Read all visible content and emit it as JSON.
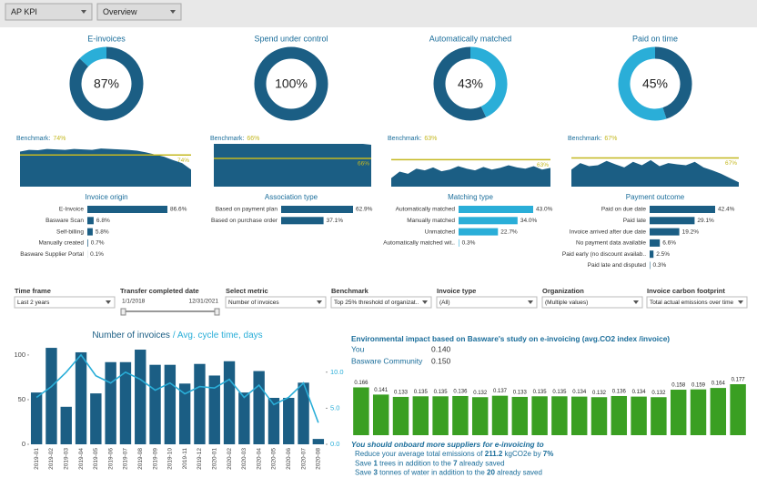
{
  "header": {
    "dropdowns": [
      "AP KPI",
      "Overview"
    ]
  },
  "chart_data": [
    {
      "type": "donut",
      "title": "E-invoices",
      "values": [
        87
      ],
      "value_labels": [
        "87%"
      ],
      "color": "#1b5e84",
      "rest_color": "#2aaed8"
    },
    {
      "type": "donut",
      "title": "Spend under control",
      "values": [
        100
      ],
      "value_labels": [
        "100%"
      ],
      "color": "#1b5e84",
      "rest_color": "#2aaed8"
    },
    {
      "type": "donut",
      "title": "Automatically matched",
      "values": [
        43
      ],
      "value_labels": [
        "43%"
      ],
      "color": "#2aaed8",
      "rest_color": "#1b5e84"
    },
    {
      "type": "donut",
      "title": "Paid on time",
      "values": [
        45
      ],
      "value_labels": [
        "45%"
      ],
      "color": "#1b5e84",
      "rest_color": "#2aaed8"
    },
    {
      "type": "area",
      "benchmark_label": "Benchmark:",
      "benchmark": {
        "value": 74,
        "label": "74%"
      },
      "ylim": [
        0,
        100
      ],
      "color": "#1b5e84",
      "benchmark_color": "#c4b820",
      "values": [
        82,
        86,
        85,
        88,
        87,
        86,
        88,
        87,
        86,
        89,
        88,
        87,
        86,
        84,
        80,
        75,
        70,
        62,
        55,
        40
      ]
    },
    {
      "type": "area",
      "benchmark_label": "Benchmark:",
      "benchmark": {
        "value": 66,
        "label": "66%"
      },
      "ylim": [
        0,
        100
      ],
      "color": "#1b5e84",
      "benchmark_color": "#c4b820",
      "values": [
        100,
        100,
        100,
        100,
        100,
        100,
        100,
        100,
        100,
        100,
        100,
        100,
        100,
        100,
        100,
        100,
        100,
        100,
        100,
        98
      ]
    },
    {
      "type": "area",
      "benchmark_label": "Benchmark:",
      "benchmark": {
        "value": 63,
        "label": "63%"
      },
      "ylim": [
        0,
        100
      ],
      "color": "#1b5e84",
      "benchmark_color": "#c4b820",
      "values": [
        20,
        35,
        30,
        42,
        38,
        45,
        36,
        40,
        48,
        42,
        38,
        46,
        40,
        44,
        50,
        45,
        42,
        48,
        40,
        44
      ]
    },
    {
      "type": "area",
      "benchmark_label": "Benchmark:",
      "benchmark": {
        "value": 67,
        "label": "67%"
      },
      "ylim": [
        0,
        100
      ],
      "color": "#1b5e84",
      "benchmark_color": "#c4b820",
      "values": [
        40,
        55,
        48,
        50,
        60,
        52,
        45,
        58,
        50,
        62,
        48,
        55,
        52,
        50,
        58,
        45,
        38,
        30,
        20,
        10
      ]
    },
    {
      "type": "hbar",
      "title": "Invoice origin",
      "color": "#1b5e84",
      "categories": [
        "E-Invoice",
        "Basware Scan",
        "Self-billing",
        "Manually created",
        "Basware Supplier Portal"
      ],
      "values": [
        86.6,
        6.8,
        5.8,
        0.7,
        0.1
      ],
      "value_labels": [
        "86.6%",
        "6.8%",
        "5.8%",
        "0.7%",
        "0.1%"
      ]
    },
    {
      "type": "hbar",
      "title": "Association type",
      "color": "#1b5e84",
      "categories": [
        "Based on payment plan",
        "Based on purchase order"
      ],
      "values": [
        62.9,
        37.1
      ],
      "value_labels": [
        "62.9%",
        "37.1%"
      ]
    },
    {
      "type": "hbar",
      "title": "Matching type",
      "color": "#2aaed8",
      "categories": [
        "Automatically matched",
        "Manually matched",
        "Unmatched",
        "Automatically matched wit.."
      ],
      "values": [
        43.0,
        34.0,
        22.7,
        0.3
      ],
      "value_labels": [
        "43.0%",
        "34.0%",
        "22.7%",
        "0.3%"
      ]
    },
    {
      "type": "hbar",
      "title": "Payment outcome",
      "color": "#1b5e84",
      "categories": [
        "Paid on due date",
        "Paid late",
        "Invoice arrived after due date",
        "No payment data available",
        "Paid early (no discount availab..",
        "Paid late and disputed"
      ],
      "values": [
        42.4,
        29.1,
        19.2,
        6.6,
        2.5,
        0.3
      ],
      "value_labels": [
        "42.4%",
        "29.1%",
        "19.2%",
        "6.6%",
        "2.5%",
        "0.3%"
      ]
    },
    {
      "type": "combo",
      "categories": [
        "2019-01",
        "2019-02",
        "2019-03",
        "2019-04",
        "2019-05",
        "2019-06",
        "2019-07",
        "2019-08",
        "2019-09",
        "2019-10",
        "2019-11",
        "2019-12",
        "2020-01",
        "2020-02",
        "2020-03",
        "2020-04",
        "2020-05",
        "2020-06",
        "2020-07",
        "2020-08"
      ],
      "series": [
        {
          "name": "Number of invoices",
          "color": "#1b5e84",
          "values": [
            58,
            108,
            42,
            103,
            57,
            92,
            92,
            106,
            89,
            89,
            68,
            90,
            77,
            93,
            58,
            82,
            52,
            52,
            69,
            6
          ]
        },
        {
          "name": "/ Avg. cycle time, days",
          "color": "#2aaed8",
          "axis": "y2",
          "values": [
            6.5,
            8.0,
            10.0,
            12.4,
            9.5,
            8.5,
            10.0,
            9.0,
            7.5,
            8.5,
            7.0,
            8.0,
            7.8,
            9.0,
            6.5,
            8.2,
            5.5,
            6.5,
            8.5,
            3.0
          ]
        }
      ],
      "ylim": [
        0,
        105
      ],
      "yticks": [
        0,
        50,
        100
      ],
      "y2lim": [
        0,
        13
      ],
      "y2ticks": [
        {
          "value": 0,
          "label": "0.0"
        },
        {
          "value": 5,
          "label": "5.0"
        },
        {
          "value": 10,
          "label": "10.0"
        }
      ]
    },
    {
      "type": "bar",
      "title": "Environmental impact based on Basware's study on e-invoicing (avg.CO2 index /invoice)",
      "color": "#3a9f22",
      "values": [
        0.166,
        0.141,
        0.133,
        0.135,
        0.135,
        0.136,
        0.132,
        0.137,
        0.133,
        0.135,
        0.135,
        0.134,
        0.132,
        0.136,
        0.134,
        0.132,
        0.158,
        0.159,
        0.164,
        0.177
      ]
    }
  ],
  "filters": [
    {
      "label": "Time frame",
      "value": "Last 2 years"
    },
    {
      "label": "Transfer completed date",
      "range": [
        "1/1/2018",
        "12/31/2021"
      ]
    },
    {
      "label": "Select metric",
      "value": "Number of invoices"
    },
    {
      "label": "Benchmark",
      "value": "Top 25% threshold of organizat.."
    },
    {
      "label": "Invoice type",
      "value": "(All)"
    },
    {
      "label": "Organization",
      "value": "(Multiple values)"
    },
    {
      "label": "Invoice carbon footprint",
      "value": "Total actual emissions over time"
    }
  ],
  "environment": {
    "comparison": [
      {
        "label": "You",
        "value": 0.14,
        "value_label": "0.140"
      },
      {
        "label": "Basware Community",
        "value": 0.15,
        "value_label": "0.150"
      }
    ],
    "suggestion": {
      "heading": "You should onboard more suppliers for e-invoicing to",
      "lines": [
        [
          "Reduce your average total emissions of ",
          "211.2",
          " kgCO2e by ",
          "7%"
        ],
        [
          "Save ",
          "1",
          " trees in addition to the ",
          "7",
          " already saved"
        ],
        [
          "Save ",
          "3",
          " tonnes of water in addition to the ",
          "20",
          " already saved"
        ]
      ]
    }
  }
}
